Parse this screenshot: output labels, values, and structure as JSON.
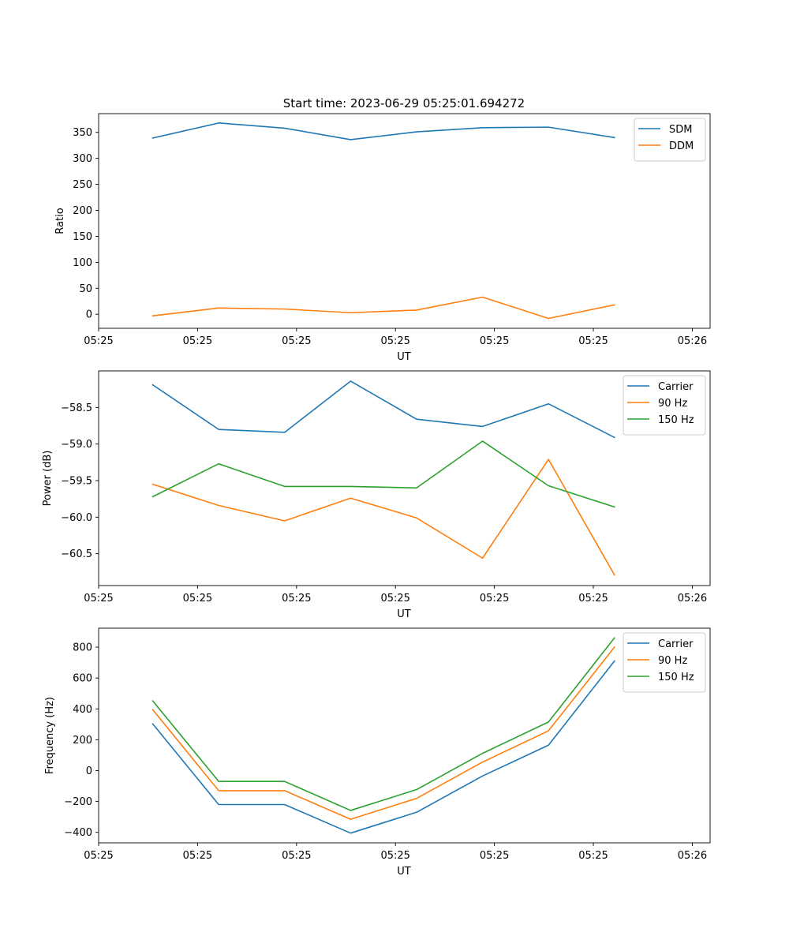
{
  "figure": {
    "title": "Start time: 2023-06-29 05:25:01.694272"
  },
  "colors": {
    "blue": "#1f77b4",
    "orange": "#ff7f0e",
    "green": "#2ca02c"
  },
  "chart_data": [
    {
      "type": "line",
      "title": "Start time: 2023-06-29 05:25:01.694272",
      "xlabel": "UT",
      "ylabel": "Ratio",
      "x": [
        1,
        2,
        3,
        4,
        5,
        6,
        7,
        8
      ],
      "xlim": [
        0.18,
        9.45
      ],
      "xticks": [
        0.18,
        1.68,
        3.18,
        4.68,
        6.18,
        7.68,
        9.18
      ],
      "xtick_labels": [
        "05:25",
        "05:25",
        "05:25",
        "05:25",
        "05:25",
        "05:25",
        "05:26"
      ],
      "ylim": [
        -27,
        386
      ],
      "yticks": [
        0,
        50,
        100,
        150,
        200,
        250,
        300,
        350
      ],
      "ytick_labels": [
        "0",
        "50",
        "100",
        "150",
        "200",
        "250",
        "300",
        "350"
      ],
      "legend": "top-right",
      "series": [
        {
          "name": "SDM",
          "color": "#1f77b4",
          "values": [
            339,
            368,
            358,
            336,
            351,
            359,
            360,
            340
          ]
        },
        {
          "name": "DDM",
          "color": "#ff7f0e",
          "values": [
            -3,
            12,
            10,
            3,
            8,
            33,
            -8,
            18
          ]
        }
      ]
    },
    {
      "type": "line",
      "xlabel": "UT",
      "ylabel": "Power (dB)",
      "x": [
        1,
        2,
        3,
        4,
        5,
        6,
        7,
        8
      ],
      "xlim": [
        0.18,
        9.45
      ],
      "xticks": [
        0.18,
        1.68,
        3.18,
        4.68,
        6.18,
        7.68,
        9.18
      ],
      "xtick_labels": [
        "05:25",
        "05:25",
        "05:25",
        "05:25",
        "05:25",
        "05:25",
        "05:26"
      ],
      "ylim": [
        -60.935,
        -58.0
      ],
      "yticks": [
        -58.5,
        -59.0,
        -59.5,
        -60.0,
        -60.5
      ],
      "ytick_labels": [
        "−58.5",
        "−59.0",
        "−59.5",
        "−60.0",
        "−60.5"
      ],
      "legend": "top-right",
      "series": [
        {
          "name": "Carrier",
          "color": "#1f77b4",
          "values": [
            -58.19,
            -58.8,
            -58.84,
            -58.14,
            -58.66,
            -58.76,
            -58.45,
            -58.91
          ]
        },
        {
          "name": "90 Hz",
          "color": "#ff7f0e",
          "values": [
            -59.55,
            -59.84,
            -60.05,
            -59.74,
            -60.01,
            -60.56,
            -59.21,
            -60.79
          ]
        },
        {
          "name": "150 Hz",
          "color": "#2ca02c",
          "values": [
            -59.72,
            -59.27,
            -59.58,
            -59.58,
            -59.6,
            -58.96,
            -59.57,
            -59.86
          ]
        }
      ]
    },
    {
      "type": "line",
      "xlabel": "UT",
      "ylabel": "Frequency (Hz)",
      "x": [
        1,
        2,
        3,
        4,
        5,
        6,
        7,
        8
      ],
      "xlim": [
        0.18,
        9.45
      ],
      "xticks": [
        0.18,
        1.68,
        3.18,
        4.68,
        6.18,
        7.68,
        9.18
      ],
      "xtick_labels": [
        "05:25",
        "05:25",
        "05:25",
        "05:25",
        "05:25",
        "05:25",
        "05:26"
      ],
      "ylim": [
        -468,
        923
      ],
      "yticks": [
        -400,
        -200,
        0,
        200,
        400,
        600,
        800
      ],
      "ytick_labels": [
        "−400",
        "−200",
        "0",
        "200",
        "400",
        "600",
        "800"
      ],
      "legend": "top-right",
      "series": [
        {
          "name": "Carrier",
          "color": "#1f77b4",
          "values": [
            303,
            -220,
            -220,
            -405,
            -270,
            -35,
            165,
            710
          ]
        },
        {
          "name": "90 Hz",
          "color": "#ff7f0e",
          "values": [
            395,
            -130,
            -130,
            -315,
            -180,
            55,
            258,
            800
          ]
        },
        {
          "name": "150 Hz",
          "color": "#2ca02c",
          "values": [
            452,
            -70,
            -70,
            -258,
            -123,
            112,
            315,
            860
          ]
        }
      ]
    }
  ]
}
